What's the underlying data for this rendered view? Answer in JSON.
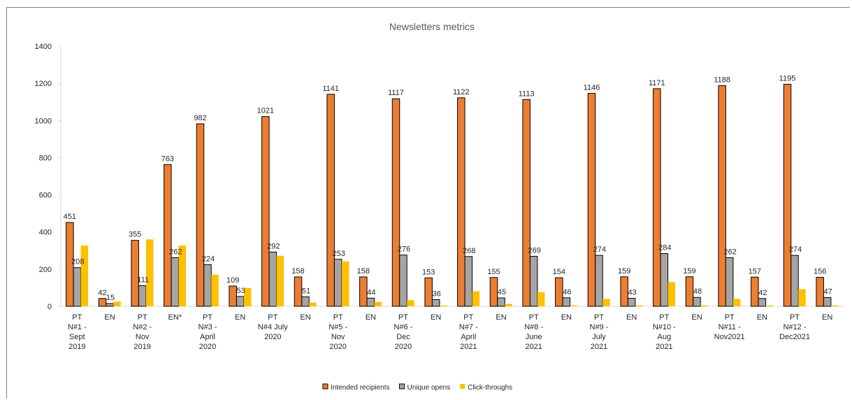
{
  "chart_data": {
    "type": "bar",
    "title": "Newsletters metrics",
    "xlabel": "",
    "ylabel": "",
    "ylim": [
      0,
      1400
    ],
    "yticks": [
      0,
      200,
      400,
      600,
      800,
      1000,
      1200,
      1400
    ],
    "grid": false,
    "legend_position": "bottom",
    "categories": [
      [
        "PT",
        "N#1 -",
        "Sept",
        "2019"
      ],
      [
        "EN"
      ],
      [
        "PT",
        "N#2 -",
        "Nov",
        "2019"
      ],
      [
        "EN*"
      ],
      [
        "PT",
        "N#3 -",
        "April",
        "2020"
      ],
      [
        "EN"
      ],
      [
        "PT",
        "N#4 July",
        "2020"
      ],
      [
        "EN"
      ],
      [
        "PT",
        "N#5 -",
        "Nov",
        "2020"
      ],
      [
        "EN"
      ],
      [
        "PT",
        "N#6 -",
        "Dec",
        "2020"
      ],
      [
        "EN"
      ],
      [
        "PT",
        "N#7 -",
        "April",
        "2021"
      ],
      [
        "EN"
      ],
      [
        "PT",
        "N#8 -",
        "June",
        "2021"
      ],
      [
        "EN"
      ],
      [
        "PT",
        "N#9 -",
        "July",
        "2021"
      ],
      [
        "EN"
      ],
      [
        "PT",
        "N#10 -",
        "Aug",
        "2021"
      ],
      [
        "EN"
      ],
      [
        "PT",
        "N#11 -",
        "Nov2021"
      ],
      [
        "EN"
      ],
      [
        "PT",
        "N#12 -",
        "Dec2021"
      ],
      [
        "EN"
      ]
    ],
    "series": [
      {
        "name": "Intended recipients",
        "color": "#ed7d31",
        "labeled": true,
        "values": [
          451,
          42,
          355,
          763,
          982,
          109,
          1021,
          158,
          1141,
          158,
          1117,
          153,
          1122,
          155,
          1113,
          154,
          1146,
          159,
          1171,
          159,
          1188,
          157,
          1195,
          156
        ]
      },
      {
        "name": "Unique opens",
        "color": "#a5a5a5",
        "labeled": true,
        "values": [
          208,
          15,
          111,
          262,
          224,
          53,
          292,
          51,
          253,
          44,
          276,
          36,
          268,
          45,
          269,
          46,
          274,
          43,
          284,
          48,
          262,
          42,
          274,
          47
        ]
      },
      {
        "name": "Click-throughs",
        "color": "#ffc000",
        "labeled": false,
        "values": [
          327,
          25,
          360,
          327,
          170,
          99,
          272,
          20,
          242,
          24,
          33,
          5,
          81,
          13,
          76,
          5,
          40,
          5,
          130,
          5,
          40,
          5,
          92,
          5
        ]
      }
    ]
  }
}
